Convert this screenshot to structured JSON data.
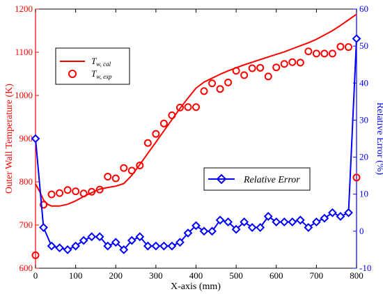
{
  "chart_data": {
    "type": "line",
    "xlabel": "X-axis (mm)",
    "ylabel_left": "Outer Wall Temperature (K)",
    "ylabel_right": "Relative Error (%)",
    "xlim": [
      0,
      800
    ],
    "ylim_left": [
      600,
      1200
    ],
    "ylim_right": [
      -10,
      60
    ],
    "x_ticks": [
      0,
      100,
      200,
      300,
      400,
      500,
      600,
      700,
      800
    ],
    "y_left_ticks": [
      600,
      700,
      800,
      900,
      1000,
      1100,
      1200
    ],
    "y_right_ticks": [
      -10,
      0,
      10,
      20,
      30,
      40,
      50,
      60
    ],
    "colors": {
      "left_axis": "#ff0000",
      "right_axis": "#0000ff",
      "cal": "#ff0000",
      "exp": "#ff0000",
      "error": "#0000ff"
    },
    "legend_top": {
      "cal": {
        "main": "T",
        "sub": "w, cal"
      },
      "exp": {
        "main": "T",
        "sub": "w, exp"
      }
    },
    "legend_error_label": "Relative Error",
    "series": [
      {
        "key": "cal",
        "axis": "left",
        "style": "line",
        "points": [
          [
            0,
            795
          ],
          [
            10,
            778
          ],
          [
            20,
            758
          ],
          [
            30,
            748
          ],
          [
            40,
            744
          ],
          [
            60,
            744
          ],
          [
            80,
            748
          ],
          [
            100,
            756
          ],
          [
            120,
            766
          ],
          [
            140,
            775
          ],
          [
            160,
            783
          ],
          [
            180,
            787
          ],
          [
            200,
            790
          ],
          [
            220,
            796
          ],
          [
            240,
            815
          ],
          [
            260,
            840
          ],
          [
            280,
            866
          ],
          [
            300,
            892
          ],
          [
            320,
            918
          ],
          [
            340,
            944
          ],
          [
            360,
            970
          ],
          [
            380,
            994
          ],
          [
            400,
            1017
          ],
          [
            420,
            1031
          ],
          [
            440,
            1040
          ],
          [
            460,
            1049
          ],
          [
            480,
            1057
          ],
          [
            500,
            1064
          ],
          [
            520,
            1071
          ],
          [
            540,
            1077
          ],
          [
            560,
            1083
          ],
          [
            580,
            1089
          ],
          [
            600,
            1095
          ],
          [
            620,
            1101
          ],
          [
            640,
            1108
          ],
          [
            660,
            1115
          ],
          [
            680,
            1122
          ],
          [
            700,
            1130
          ],
          [
            720,
            1140
          ],
          [
            740,
            1150
          ],
          [
            760,
            1162
          ],
          [
            780,
            1175
          ],
          [
            800,
            1188
          ]
        ]
      },
      {
        "key": "exp",
        "axis": "left",
        "style": "markers",
        "points": [
          [
            0,
            630
          ],
          [
            20,
            747
          ],
          [
            40,
            771
          ],
          [
            60,
            774
          ],
          [
            80,
            781
          ],
          [
            100,
            778
          ],
          [
            120,
            773
          ],
          [
            140,
            777
          ],
          [
            160,
            782
          ],
          [
            180,
            812
          ],
          [
            200,
            808
          ],
          [
            220,
            832
          ],
          [
            240,
            826
          ],
          [
            260,
            838
          ],
          [
            280,
            890
          ],
          [
            300,
            911
          ],
          [
            320,
            935
          ],
          [
            340,
            954
          ],
          [
            360,
            972
          ],
          [
            380,
            973
          ],
          [
            400,
            973
          ],
          [
            420,
            1010
          ],
          [
            440,
            1028
          ],
          [
            460,
            1015
          ],
          [
            480,
            1030
          ],
          [
            500,
            1057
          ],
          [
            520,
            1047
          ],
          [
            540,
            1063
          ],
          [
            560,
            1064
          ],
          [
            580,
            1044
          ],
          [
            600,
            1065
          ],
          [
            620,
            1073
          ],
          [
            640,
            1077
          ],
          [
            660,
            1076
          ],
          [
            680,
            1102
          ],
          [
            700,
            1097
          ],
          [
            720,
            1097
          ],
          [
            740,
            1097
          ],
          [
            760,
            1113
          ],
          [
            780,
            1112
          ],
          [
            800,
            810
          ]
        ]
      },
      {
        "key": "error",
        "axis": "right",
        "style": "line-diamond",
        "points": [
          [
            0,
            25
          ],
          [
            20,
            1
          ],
          [
            40,
            -4
          ],
          [
            60,
            -4.5
          ],
          [
            80,
            -5
          ],
          [
            100,
            -4
          ],
          [
            120,
            -2.5
          ],
          [
            140,
            -1.5
          ],
          [
            160,
            -1.5
          ],
          [
            180,
            -4
          ],
          [
            200,
            -3
          ],
          [
            220,
            -5
          ],
          [
            240,
            -2.5
          ],
          [
            260,
            -1.5
          ],
          [
            280,
            -4
          ],
          [
            300,
            -4
          ],
          [
            320,
            -4
          ],
          [
            340,
            -4
          ],
          [
            360,
            -3
          ],
          [
            380,
            -0.5
          ],
          [
            400,
            1.5
          ],
          [
            420,
            0
          ],
          [
            440,
            0
          ],
          [
            460,
            3
          ],
          [
            480,
            2.5
          ],
          [
            500,
            0.5
          ],
          [
            520,
            2.5
          ],
          [
            540,
            1
          ],
          [
            560,
            1
          ],
          [
            580,
            4
          ],
          [
            600,
            2.5
          ],
          [
            620,
            2.5
          ],
          [
            640,
            2.5
          ],
          [
            660,
            3
          ],
          [
            680,
            1
          ],
          [
            700,
            2.5
          ],
          [
            720,
            3.5
          ],
          [
            740,
            5
          ],
          [
            760,
            4
          ],
          [
            780,
            5
          ],
          [
            800,
            52
          ]
        ]
      }
    ]
  }
}
